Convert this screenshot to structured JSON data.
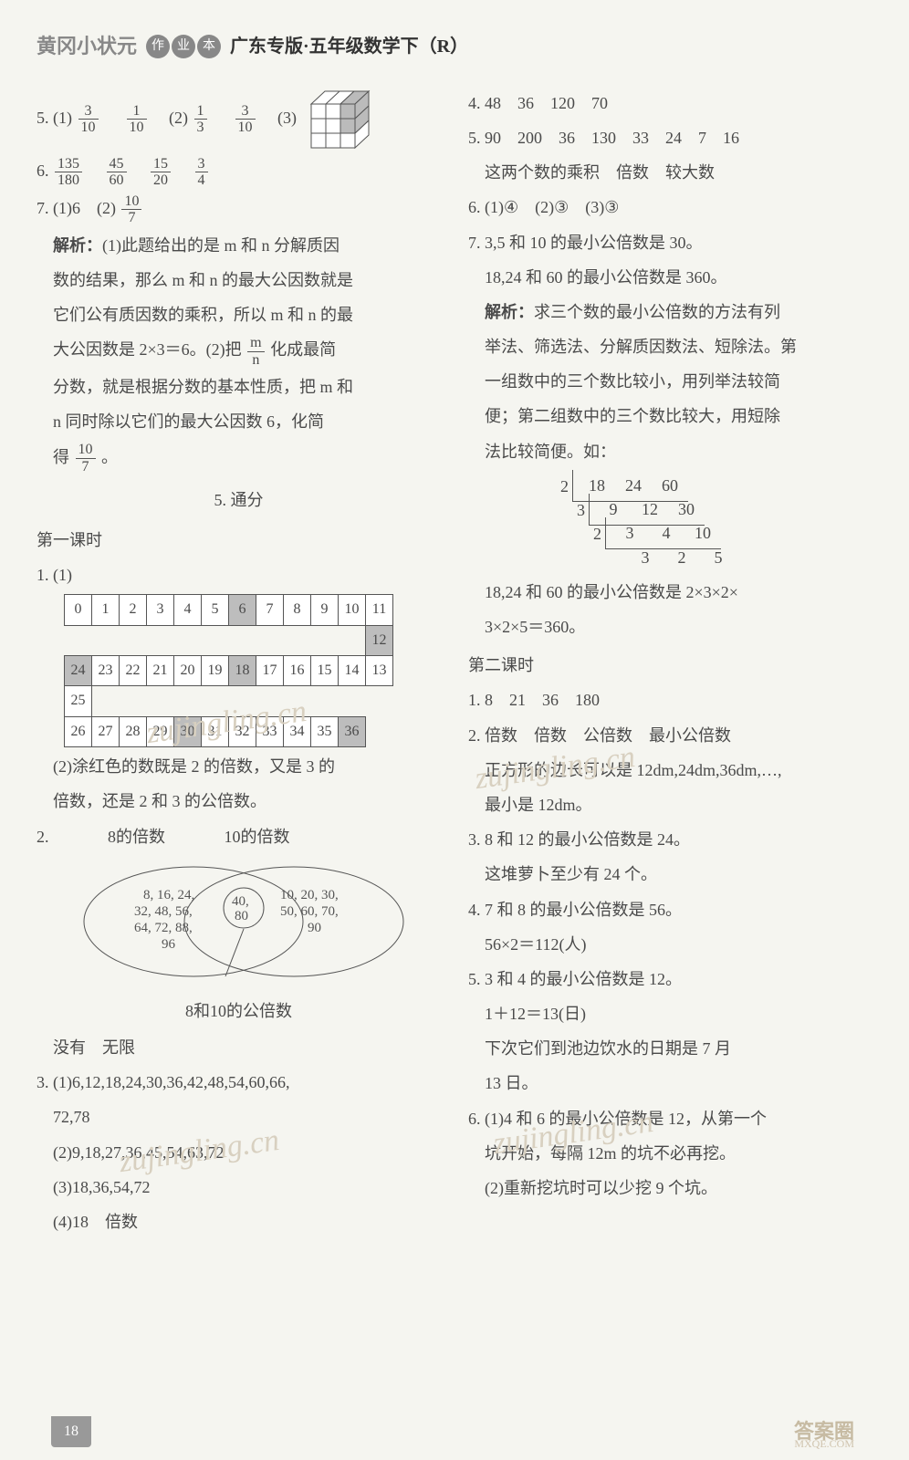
{
  "header": {
    "brand": "黄冈小状元",
    "badges": [
      "作",
      "业",
      "本"
    ],
    "title": "广东专版·五年级数学下（R）"
  },
  "left": {
    "q5": {
      "prefix": "5. (1)",
      "f1_num": "3",
      "f1_den": "10",
      "f2_num": "1",
      "f2_den": "10",
      "mid": "　(2)",
      "f3_num": "1",
      "f3_den": "3",
      "f4_num": "3",
      "f4_den": "10",
      "tail": "　(3)"
    },
    "q6": {
      "prefix": "6. ",
      "f1_num": "135",
      "f1_den": "180",
      "f2_num": "45",
      "f2_den": "60",
      "f3_num": "15",
      "f3_den": "20",
      "f4_num": "3",
      "f4_den": "4"
    },
    "q7": {
      "prefix": "7. (1)6　(2)",
      "f_num": "10",
      "f_den": "7"
    },
    "analysis_label": "解析：",
    "analysis1_a": "(1)此题给出的是 m 和 n 分解质因",
    "analysis1_b": "数的结果，那么 m 和 n 的最大公因数就是",
    "analysis1_c": "它们公有质因数的乘积，所以 m 和 n 的最",
    "analysis1_d_pre": "大公因数是 2×3＝6。(2)把 ",
    "analysis1_d_fnum": "m",
    "analysis1_d_fden": "n",
    "analysis1_d_post": " 化成最简",
    "analysis1_e": "分数，就是根据分数的基本性质，把 m 和",
    "analysis1_f": "n 同时除以它们的最大公因数 6，化简",
    "analysis1_g_pre": "得",
    "analysis1_g_fnum": "10",
    "analysis1_g_fden": "7",
    "analysis1_g_post": "。",
    "section5": "5. 通分",
    "lesson1": "第一课时",
    "grid": {
      "r1": [
        {
          "v": "0"
        },
        {
          "v": "1"
        },
        {
          "v": "2"
        },
        {
          "v": "3"
        },
        {
          "v": "4"
        },
        {
          "v": "5"
        },
        {
          "v": "6",
          "s": true
        },
        {
          "v": "7"
        },
        {
          "v": "8"
        },
        {
          "v": "9"
        },
        {
          "v": "10"
        },
        {
          "v": "11"
        }
      ],
      "r2_last": {
        "v": "12",
        "s": true
      },
      "r3": [
        {
          "v": "24",
          "s": true
        },
        {
          "v": "23"
        },
        {
          "v": "22"
        },
        {
          "v": "21"
        },
        {
          "v": "20"
        },
        {
          "v": "19"
        },
        {
          "v": "18",
          "s": true
        },
        {
          "v": "17"
        },
        {
          "v": "16"
        },
        {
          "v": "15"
        },
        {
          "v": "14"
        },
        {
          "v": "13"
        }
      ],
      "r4_first": {
        "v": "25"
      },
      "r5": [
        {
          "v": "26"
        },
        {
          "v": "27"
        },
        {
          "v": "28"
        },
        {
          "v": "29"
        },
        {
          "v": "30",
          "s": true
        },
        {
          "v": "31"
        },
        {
          "v": "32"
        },
        {
          "v": "33"
        },
        {
          "v": "34"
        },
        {
          "v": "35"
        },
        {
          "v": "36",
          "s": true
        }
      ]
    },
    "grid_prefix": "1. (1)",
    "grid_text_a": "(2)涂红色的数既是 2 的倍数，又是 3 的",
    "grid_text_b": "倍数，还是 2 和 3 的公倍数。",
    "venn": {
      "prefix": "2.",
      "left_label": "8的倍数",
      "right_label": "10的倍数",
      "bottom_label": "8和10的公倍数",
      "left_vals": "8, 16, 24, 32, 48, 56, 64, 72, 88, 96",
      "mid_vals": "40, 80",
      "right_vals": "10, 20, 30, 50, 60, 70, 90"
    },
    "venn_ans": "没有　无限",
    "q3_a": "3. (1)6,12,18,24,30,36,42,48,54,60,66,",
    "q3_a2": "72,78",
    "q3_b": "(2)9,18,27,36,45,54,63,72",
    "q3_c": "(3)18,36,54,72",
    "q3_d": "(4)18　倍数"
  },
  "right": {
    "q4": "4. 48　36　120　70",
    "q5_a": "5. 90　200　36　130　33　24　7　16",
    "q5_b": "这两个数的乘积　倍数　较大数",
    "q6": "6. (1)④　(2)③　(3)③",
    "q7_a": "7. 3,5 和 10 的最小公倍数是 30。",
    "q7_b": "18,24 和 60 的最小公倍数是 360。",
    "analysis_label": "解析：",
    "analysis_a": "求三个数的最小公倍数的方法有列",
    "analysis_b": "举法、筛选法、分解质因数法、短除法。第",
    "analysis_c": "一组数中的三个数比较小，用列举法较简",
    "analysis_d": "便；第二组数中的三个数比较大，用短除",
    "analysis_e": "法比较简便。如：",
    "ladder": {
      "r1": {
        "q": "2",
        "c": [
          "18",
          "24",
          "60"
        ]
      },
      "r2": {
        "q": "3",
        "c": [
          "9",
          "12",
          "30"
        ]
      },
      "r3": {
        "q": "2",
        "c": [
          "3",
          "4",
          "10"
        ]
      },
      "r4": {
        "q": "",
        "c": [
          "3",
          "2",
          "5"
        ]
      }
    },
    "ladder_ans_a": "18,24 和 60 的最小公倍数是 2×3×2×",
    "ladder_ans_b": "3×2×5＝360。",
    "lesson2": "第二课时",
    "l2_q1": "1. 8　21　36　180",
    "l2_q2_a": "2. 倍数　倍数　公倍数　最小公倍数",
    "l2_q2_b": "正方形的边长可以是 12dm,24dm,36dm,…,",
    "l2_q2_c": "最小是 12dm。",
    "l2_q3_a": "3. 8 和 12 的最小公倍数是 24。",
    "l2_q3_b": "这堆萝卜至少有 24 个。",
    "l2_q4_a": "4. 7 和 8 的最小公倍数是 56。",
    "l2_q4_b": "56×2＝112(人)",
    "l2_q5_a": "5. 3 和 4 的最小公倍数是 12。",
    "l2_q5_b": "1＋12＝13(日)",
    "l2_q5_c": "下次它们到池边饮水的日期是 7 月",
    "l2_q5_d": "13 日。",
    "l2_q6_a": "6. (1)4 和 6 的最小公倍数是 12，从第一个",
    "l2_q6_b": "坑开始，每隔 12m 的坑不必再挖。",
    "l2_q6_c": "(2)重新挖坑时可以少挖 9 个坑。"
  },
  "watermarks": {
    "w1": "zujingling.cn",
    "w2": "zujingling.cn",
    "w3": "zujingling.cn",
    "w4": "zujingling.cn"
  },
  "page_number": "18",
  "footer_brand": "答案圈",
  "footer_url": "MXQE.COM"
}
